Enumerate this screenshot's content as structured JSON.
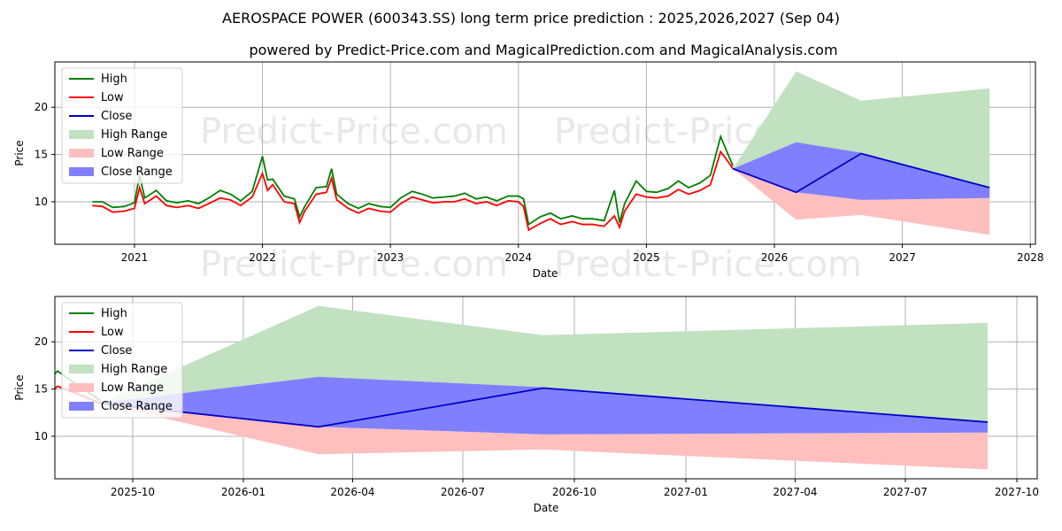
{
  "title": "AEROSPACE POWER (600343.SS) long term price prediction : 2025,2026,2027 (Sep 04)",
  "subtitle": "powered by Predict-Price.com and MagicalPrediction.com and MagicalAnalysis.com",
  "watermark": "Predict-Price.com",
  "colors": {
    "high": "#008000",
    "low": "#ff0000",
    "close": "#0000cc",
    "high_range": "#c1e1c1",
    "low_range": "#ffbfbf",
    "close_range": "#8080ff"
  },
  "chart_data": [
    {
      "type": "line",
      "name": "full-history",
      "xlabel": "Date",
      "ylabel": "Price",
      "xlim": [
        2020.378,
        2028.04
      ],
      "ylim": [
        5.5,
        24.8
      ],
      "xticks": [
        {
          "v": 2021,
          "label": "2021"
        },
        {
          "v": 2022,
          "label": "2022"
        },
        {
          "v": 2023,
          "label": "2023"
        },
        {
          "v": 2024,
          "label": "2024"
        },
        {
          "v": 2025,
          "label": "2025"
        },
        {
          "v": 2026,
          "label": "2026"
        },
        {
          "v": 2027,
          "label": "2027"
        },
        {
          "v": 2028,
          "label": "2028"
        }
      ],
      "yticks": [
        {
          "v": 10,
          "label": "10"
        },
        {
          "v": 15,
          "label": "15"
        },
        {
          "v": 20,
          "label": "20"
        }
      ],
      "legend": {
        "placement": "upper-left",
        "entries": [
          "High",
          "Low",
          "Close",
          "High Range",
          "Low Range",
          "Close Range"
        ]
      },
      "grid": true
    },
    {
      "type": "line",
      "name": "forecast-zoom",
      "xlabel": "Date",
      "ylabel": "Price",
      "xlim": [
        2025.574,
        2027.794
      ],
      "ylim": [
        5.5,
        24.8
      ],
      "xticks": [
        {
          "v": 2025.75,
          "label": "2025-10"
        },
        {
          "v": 2026.0,
          "label": "2026-01"
        },
        {
          "v": 2026.247,
          "label": "2026-04"
        },
        {
          "v": 2026.496,
          "label": "2026-07"
        },
        {
          "v": 2026.748,
          "label": "2026-10"
        },
        {
          "v": 2027.0,
          "label": "2027-01"
        },
        {
          "v": 2027.247,
          "label": "2027-04"
        },
        {
          "v": 2027.496,
          "label": "2027-07"
        },
        {
          "v": 2027.748,
          "label": "2027-10"
        }
      ],
      "yticks": [
        {
          "v": 10,
          "label": "10"
        },
        {
          "v": 15,
          "label": "15"
        },
        {
          "v": 20,
          "label": "20"
        }
      ],
      "legend": {
        "placement": "upper-left",
        "entries": [
          "High",
          "Low",
          "Close",
          "High Range",
          "Low Range",
          "Close Range"
        ]
      },
      "grid": true
    }
  ],
  "history": {
    "x": [
      2020.67,
      2020.75,
      2020.83,
      2020.92,
      2021.0,
      2021.04,
      2021.08,
      2021.17,
      2021.25,
      2021.33,
      2021.42,
      2021.5,
      2021.58,
      2021.67,
      2021.75,
      2021.83,
      2021.92,
      2022.0,
      2022.04,
      2022.08,
      2022.17,
      2022.25,
      2022.29,
      2022.33,
      2022.42,
      2022.5,
      2022.54,
      2022.58,
      2022.67,
      2022.75,
      2022.83,
      2022.92,
      2023.0,
      2023.08,
      2023.17,
      2023.25,
      2023.33,
      2023.42,
      2023.5,
      2023.58,
      2023.67,
      2023.75,
      2023.83,
      2023.92,
      2024.0,
      2024.04,
      2024.08,
      2024.17,
      2024.25,
      2024.33,
      2024.42,
      2024.5,
      2024.58,
      2024.67,
      2024.75,
      2024.79,
      2024.83,
      2024.92,
      2025.0,
      2025.08,
      2025.17,
      2025.25,
      2025.33,
      2025.42,
      2025.5,
      2025.58,
      2025.62,
      2025.676
    ],
    "low": [
      9.6,
      9.5,
      8.9,
      9.0,
      9.3,
      11.5,
      9.8,
      10.6,
      9.6,
      9.4,
      9.6,
      9.3,
      9.8,
      10.4,
      10.2,
      9.6,
      10.5,
      13.0,
      11.2,
      11.8,
      10.0,
      9.8,
      7.8,
      9.0,
      10.8,
      11.0,
      12.5,
      10.2,
      9.3,
      8.8,
      9.3,
      9.0,
      8.9,
      9.8,
      10.5,
      10.2,
      9.9,
      10.0,
      10.0,
      10.3,
      9.8,
      10.0,
      9.6,
      10.1,
      10.0,
      9.5,
      7.0,
      7.7,
      8.2,
      7.6,
      7.9,
      7.6,
      7.6,
      7.4,
      8.5,
      7.3,
      9.0,
      10.8,
      10.5,
      10.4,
      10.6,
      11.3,
      10.8,
      11.2,
      11.8,
      15.3,
      14.6,
      13.5
    ],
    "high": [
      10.0,
      10.0,
      9.4,
      9.5,
      9.9,
      12.8,
      10.4,
      11.2,
      10.1,
      9.9,
      10.1,
      9.8,
      10.4,
      11.2,
      10.8,
      10.1,
      11.1,
      14.8,
      12.3,
      12.4,
      10.6,
      10.3,
      8.4,
      9.5,
      11.5,
      11.6,
      13.5,
      10.8,
      9.8,
      9.3,
      9.8,
      9.5,
      9.4,
      10.4,
      11.1,
      10.8,
      10.4,
      10.5,
      10.6,
      10.9,
      10.3,
      10.5,
      10.1,
      10.6,
      10.6,
      10.3,
      7.6,
      8.4,
      8.8,
      8.2,
      8.5,
      8.2,
      8.2,
      8.0,
      11.2,
      7.8,
      9.8,
      12.2,
      11.1,
      11.0,
      11.4,
      12.2,
      11.5,
      12.0,
      12.8,
      16.9,
      15.6,
      13.8
    ]
  },
  "forecast": {
    "x": [
      2025.676,
      2026.17,
      2026.678,
      2027.682
    ],
    "close": [
      13.5,
      11.0,
      15.1,
      11.5
    ],
    "high_range": {
      "low": [
        13.5,
        16.3,
        15.2,
        11.5
      ],
      "high": [
        13.5,
        23.8,
        20.7,
        22.0
      ]
    },
    "close_range": {
      "low": [
        13.5,
        11.0,
        10.2,
        10.4
      ],
      "high": [
        13.5,
        16.3,
        15.2,
        11.5
      ]
    },
    "low_range": {
      "low": [
        13.5,
        8.1,
        8.6,
        6.5
      ],
      "high": [
        13.5,
        11.0,
        10.2,
        10.4
      ]
    }
  }
}
